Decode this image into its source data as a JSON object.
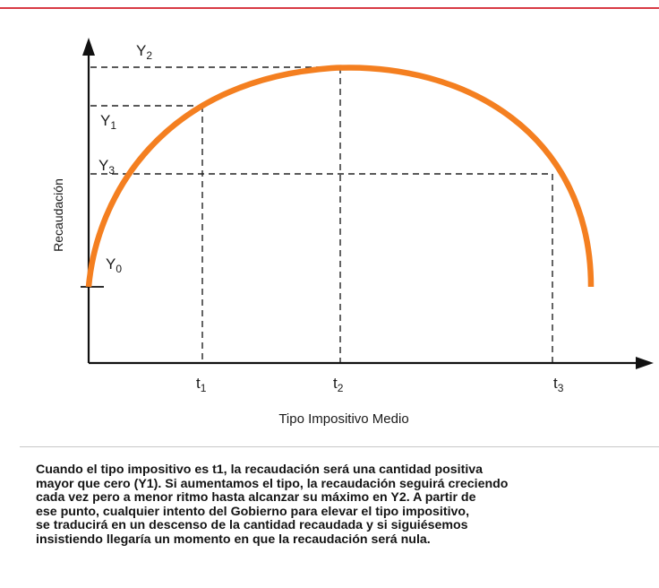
{
  "diagram": {
    "ylabel": "Recaudación",
    "xlabel": "Tipo Impositivo Medio",
    "y_labels": [
      {
        "base": "Y",
        "sub": "2"
      },
      {
        "base": "Y",
        "sub": "1"
      },
      {
        "base": "Y",
        "sub": "3"
      },
      {
        "base": "Y",
        "sub": "0"
      }
    ],
    "x_labels": [
      {
        "base": "t",
        "sub": "1"
      },
      {
        "base": "t",
        "sub": "2"
      },
      {
        "base": "t",
        "sub": "3"
      }
    ],
    "curve_color": "#f47f20"
  },
  "caption": {
    "lines": [
      "Cuando el tipo impositivo es t1, la recaudación será una cantidad positiva",
      "mayor que cero (Y1). Si aumentamos el tipo, la recaudación seguirá creciendo",
      "cada vez pero a menor ritmo hasta alcanzar su máximo en Y2. A partir de",
      "ese punto, cualquier intento del Gobierno para elevar el tipo impositivo,",
      "se traducirá en un descenso de la cantidad recaudada y si siguiésemos",
      "insistiendo llegaría un momento en que la recaudación será nula."
    ]
  }
}
